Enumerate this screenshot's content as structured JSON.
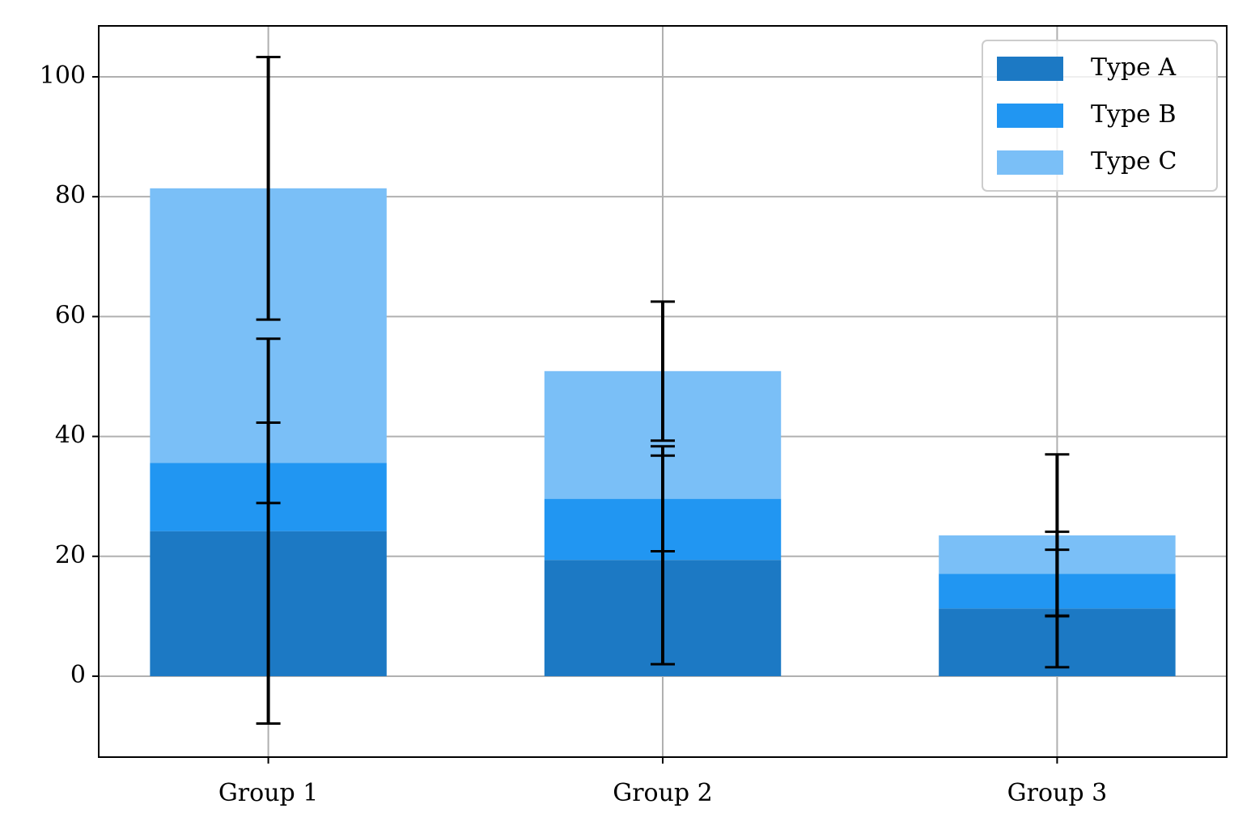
{
  "chart_data": {
    "type": "stacked-bar",
    "categories": [
      "Group 1",
      "Group 2",
      "Group 3"
    ],
    "series": [
      {
        "name": "Type A",
        "color": "#1c79c4",
        "values": [
          24.2,
          19.4,
          11.3
        ],
        "errors": [
          32.1,
          17.4,
          9.8
        ]
      },
      {
        "name": "Type B",
        "color": "#2196f2",
        "values": [
          11.4,
          10.2,
          5.8
        ],
        "errors": [
          6.7,
          8.75,
          7.0
        ]
      },
      {
        "name": "Type C",
        "color": "#7abff7",
        "values": [
          45.8,
          21.3,
          6.4
        ],
        "errors": [
          21.9,
          11.6,
          13.5
        ]
      }
    ],
    "ylim": [
      -13.5,
      108.5
    ],
    "yticks": [
      0,
      20,
      40,
      60,
      80,
      100
    ],
    "grid": true,
    "legend": "upper right"
  }
}
